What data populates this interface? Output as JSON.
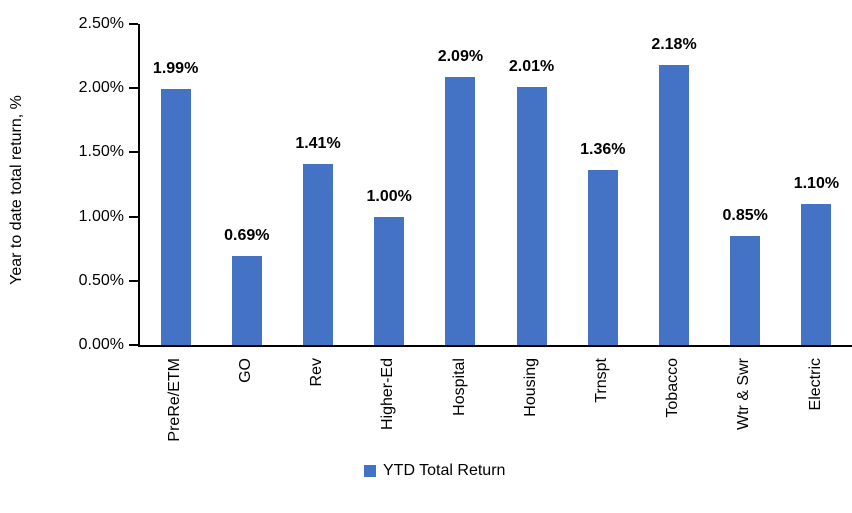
{
  "chart_data": {
    "type": "bar",
    "title": "",
    "xlabel": "",
    "ylabel": "Year to date total return, %",
    "categories": [
      "PreRe/ETM",
      "GO",
      "Rev",
      "Higher-Ed",
      "Hospital",
      "Housing",
      "Trnspt",
      "Tobacco",
      "Wtr & Swr",
      "Electric"
    ],
    "values": [
      1.99,
      0.69,
      1.41,
      1.0,
      2.09,
      2.01,
      1.36,
      2.18,
      0.85,
      1.1
    ],
    "value_labels": [
      "1.99%",
      "0.69%",
      "1.41%",
      "1.00%",
      "2.09%",
      "2.01%",
      "1.36%",
      "2.18%",
      "0.85%",
      "1.10%"
    ],
    "ylim": [
      0,
      2.5
    ],
    "ytick_step": 0.5,
    "ytick_labels": [
      "0.00%",
      "0.50%",
      "1.00%",
      "1.50%",
      "2.00%",
      "2.50%"
    ],
    "legend": [
      "YTD Total Return"
    ],
    "legend_position": "bottom-center",
    "grid": false,
    "bar_color": "#4472C4",
    "axis_color": "#000000",
    "text_color": "#000000"
  }
}
